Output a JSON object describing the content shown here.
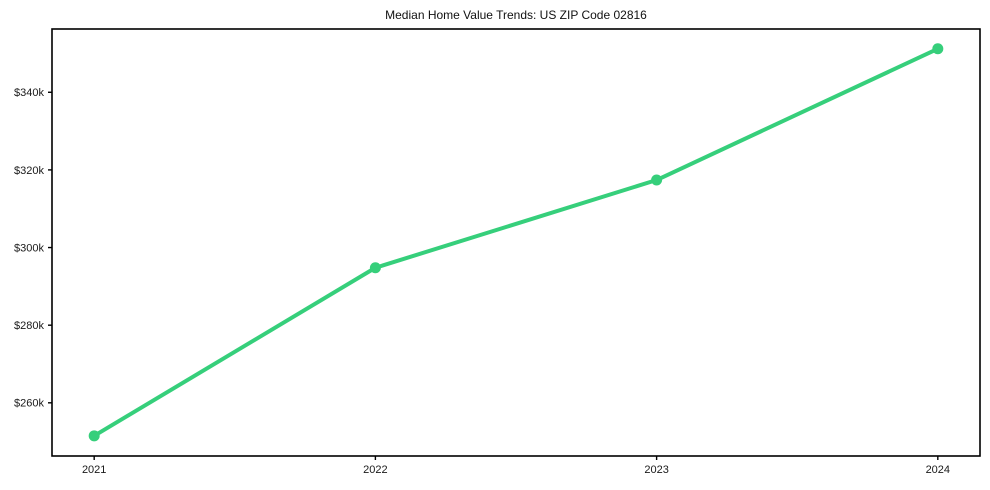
{
  "chart_data": {
    "type": "line",
    "title": "Median Home Value Trends: US ZIP Code 02816",
    "x": [
      "2021",
      "2022",
      "2023",
      "2024"
    ],
    "series": [
      {
        "name": "Median Home Value",
        "values": [
          251500,
          294800,
          317400,
          351200
        ]
      }
    ],
    "yticks": [
      {
        "value": 260000,
        "label": "$260k"
      },
      {
        "value": 280000,
        "label": "$280k"
      },
      {
        "value": 300000,
        "label": "$300k"
      },
      {
        "value": 320000,
        "label": "$320k"
      },
      {
        "value": 340000,
        "label": "$340k"
      }
    ],
    "ylim": [
      246300,
      356300
    ],
    "x_margin": 0.15,
    "xlabel": "",
    "ylabel": "",
    "grid": false,
    "legend": "none",
    "line_color": "#36cf7b",
    "marker": "circle",
    "frame_color": "#000000",
    "text_color": "#1a1a1a"
  }
}
